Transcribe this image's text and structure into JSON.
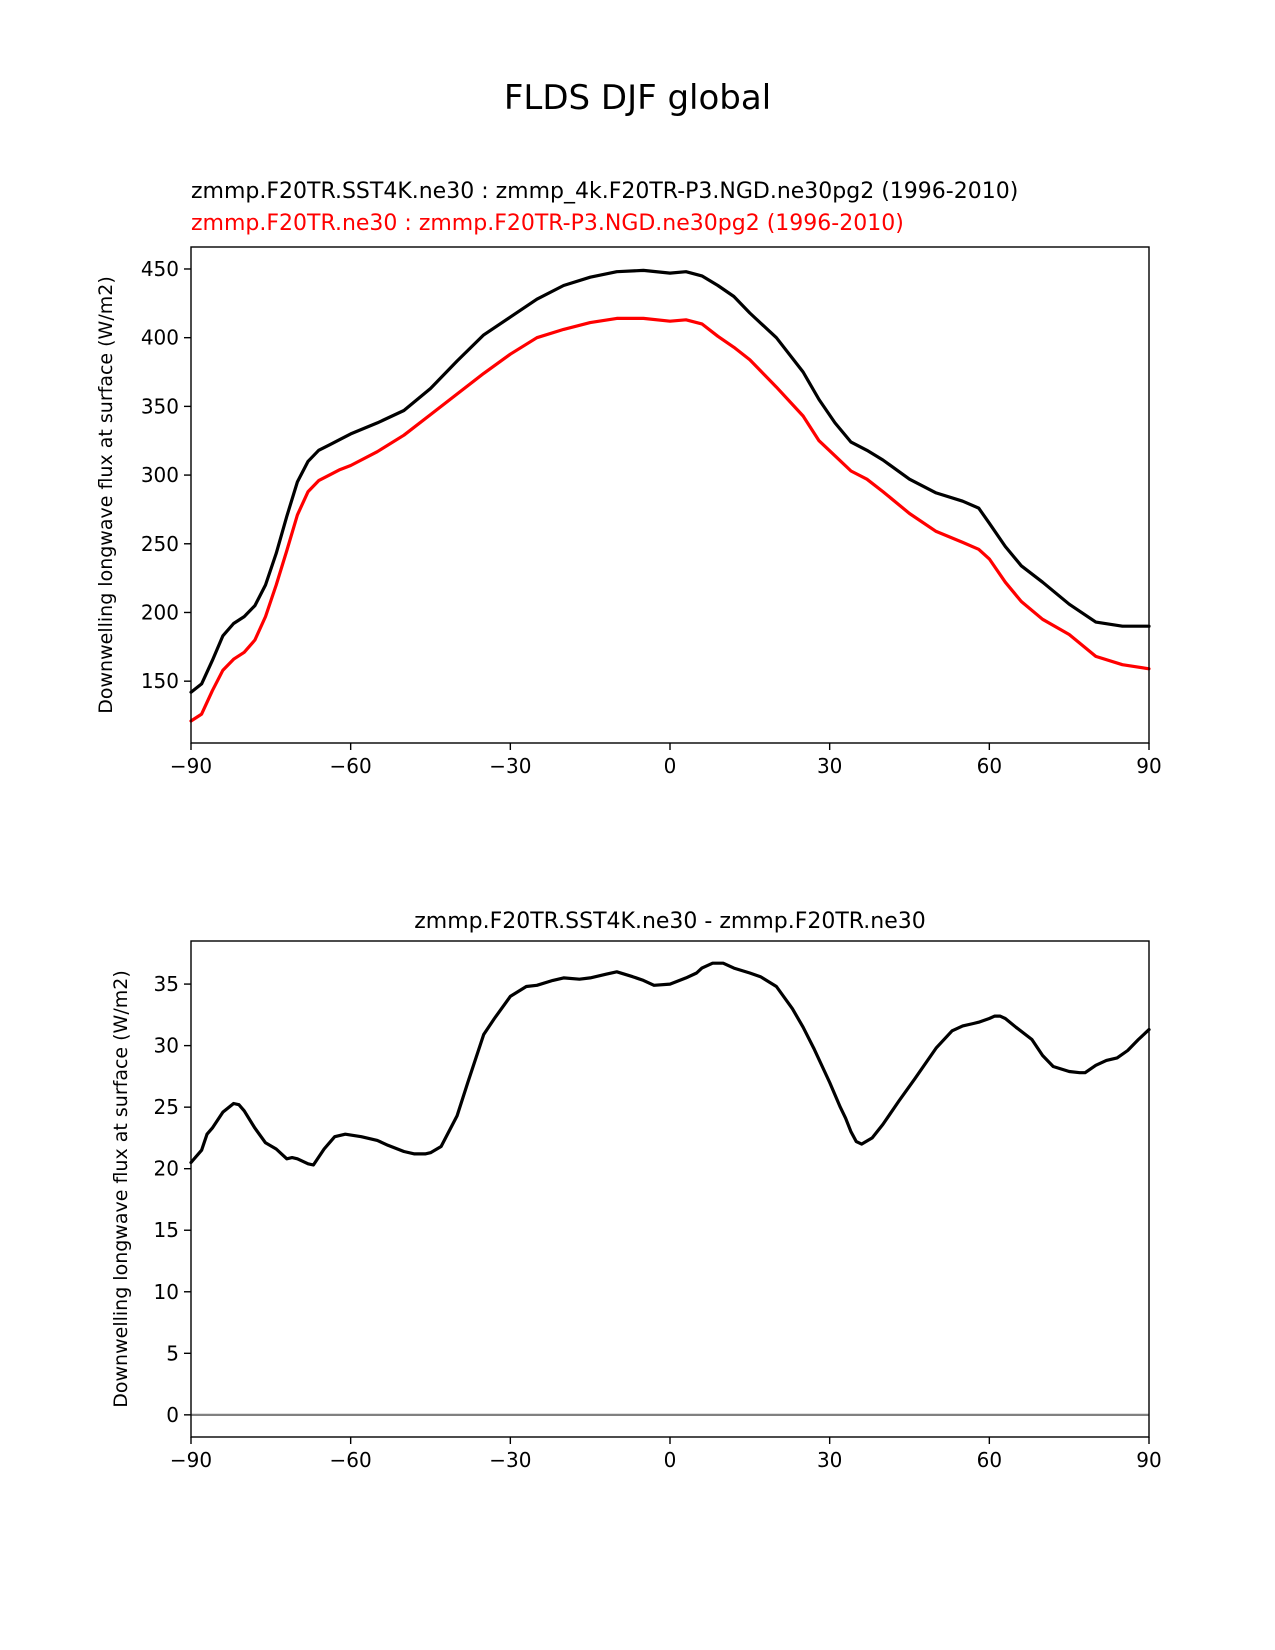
{
  "figure": {
    "suptitle": "FLDS DJF global"
  },
  "chart_data": [
    {
      "type": "line",
      "title_lines": [
        "zmmp.F20TR.SST4K.ne30 : zmmp_4k.F20TR-P3.NGD.ne30pg2 (1996-2010)",
        "zmmp.F20TR.ne30 : zmmp.F20TR-P3.NGD.ne30pg2 (1996-2010)"
      ],
      "title_colors": [
        "#000000",
        "#ff0000"
      ],
      "xlabel": "",
      "ylabel": "Downwelling longwave flux at surface (W/m2)",
      "xlim": [
        -90,
        90
      ],
      "ylim": [
        105,
        466
      ],
      "xticks": [
        -90,
        -60,
        -30,
        0,
        30,
        60,
        90
      ],
      "xtick_labels": [
        "−90",
        "−60",
        "−30",
        "0",
        "30",
        "60",
        "90"
      ],
      "yticks": [
        150,
        200,
        250,
        300,
        350,
        400,
        450
      ],
      "ytick_labels": [
        "150",
        "200",
        "250",
        "300",
        "350",
        "400",
        "450"
      ],
      "series": [
        {
          "name": "zmmp.F20TR.SST4K.ne30 : zmmp_4k.F20TR-P3.NGD.ne30pg2 (1996-2010)",
          "color": "#000000",
          "x": [
            -90,
            -88,
            -86,
            -84,
            -82,
            -80,
            -78,
            -76,
            -74,
            -72,
            -70,
            -68,
            -66,
            -64,
            -62,
            -60,
            -55,
            -50,
            -45,
            -40,
            -35,
            -30,
            -25,
            -20,
            -15,
            -10,
            -5,
            0,
            3,
            6,
            9,
            12,
            15,
            20,
            25,
            28,
            31,
            34,
            37,
            40,
            45,
            50,
            55,
            58,
            60,
            63,
            66,
            70,
            75,
            80,
            85,
            90
          ],
          "y": [
            142,
            148,
            165,
            183,
            192,
            197,
            205,
            220,
            243,
            270,
            295,
            310,
            318,
            322,
            326,
            330,
            338,
            347,
            363,
            383,
            402,
            415,
            428,
            438,
            444,
            448,
            449,
            447,
            448,
            445,
            438,
            430,
            418,
            400,
            375,
            355,
            338,
            324,
            318,
            311,
            297,
            287,
            281,
            276,
            265,
            248,
            234,
            222,
            206,
            193,
            190,
            190
          ]
        },
        {
          "name": "zmmp.F20TR.ne30 : zmmp.F20TR-P3.NGD.ne30pg2 (1996-2010)",
          "color": "#ff0000",
          "x": [
            -90,
            -88,
            -86,
            -84,
            -82,
            -80,
            -78,
            -76,
            -74,
            -72,
            -70,
            -68,
            -66,
            -64,
            -62,
            -60,
            -55,
            -50,
            -45,
            -40,
            -35,
            -30,
            -25,
            -20,
            -15,
            -10,
            -5,
            0,
            3,
            6,
            9,
            12,
            15,
            20,
            25,
            28,
            31,
            34,
            37,
            40,
            45,
            50,
            55,
            58,
            60,
            63,
            66,
            70,
            75,
            80,
            85,
            90
          ],
          "y": [
            121,
            126,
            143,
            158,
            166,
            171,
            180,
            197,
            220,
            245,
            271,
            288,
            296,
            300,
            304,
            307,
            317,
            329,
            344,
            359,
            374,
            388,
            400,
            406,
            411,
            414,
            414,
            412,
            413,
            410,
            401,
            393,
            384,
            364,
            343,
            325,
            314,
            303,
            297,
            288,
            272,
            259,
            251,
            246,
            239,
            222,
            208,
            195,
            184,
            168,
            162,
            159
          ]
        }
      ]
    },
    {
      "type": "line",
      "title_lines": [
        "zmmp.F20TR.SST4K.ne30 - zmmp.F20TR.ne30"
      ],
      "title_colors": [
        "#000000"
      ],
      "xlabel": "",
      "ylabel": "Downwelling longwave flux at surface (W/m2)",
      "xlim": [
        -90,
        90
      ],
      "ylim": [
        -1.8,
        38.5
      ],
      "xticks": [
        -90,
        -60,
        -30,
        0,
        30,
        60,
        90
      ],
      "xtick_labels": [
        "−90",
        "−60",
        "−30",
        "0",
        "30",
        "60",
        "90"
      ],
      "yticks": [
        0,
        5,
        10,
        15,
        20,
        25,
        30,
        35
      ],
      "ytick_labels": [
        "0",
        "5",
        "10",
        "15",
        "20",
        "25",
        "30",
        "35"
      ],
      "reference_line": {
        "y": 0,
        "color": "#808080"
      },
      "series": [
        {
          "name": "zmmp.F20TR.SST4K.ne30 - zmmp.F20TR.ne30",
          "color": "#000000",
          "x": [
            -90,
            -88,
            -87,
            -86,
            -84,
            -82,
            -81,
            -80,
            -78,
            -76,
            -74,
            -72,
            -71,
            -70,
            -68,
            -67,
            -65,
            -63,
            -61,
            -58,
            -55,
            -53,
            -50,
            -48,
            -46,
            -45,
            -43,
            -40,
            -38,
            -35,
            -33,
            -30,
            -27,
            -25,
            -22,
            -20,
            -17,
            -15,
            -12,
            -10,
            -7,
            -5,
            -3,
            0,
            3,
            5,
            6,
            8,
            10,
            12,
            15,
            17,
            20,
            23,
            25,
            27,
            30,
            32,
            33,
            34,
            35,
            36,
            38,
            40,
            43,
            46,
            50,
            53,
            55,
            57,
            58,
            60,
            61,
            62,
            63,
            65,
            68,
            70,
            72,
            75,
            77,
            78,
            80,
            82,
            84,
            86,
            88,
            90
          ],
          "y": [
            20.5,
            21.5,
            22.8,
            23.3,
            24.6,
            25.3,
            25.2,
            24.7,
            23.3,
            22.1,
            21.6,
            20.8,
            20.9,
            20.8,
            20.4,
            20.3,
            21.6,
            22.6,
            22.8,
            22.6,
            22.3,
            21.9,
            21.4,
            21.2,
            21.2,
            21.3,
            21.8,
            24.3,
            27.0,
            30.9,
            32.2,
            34.0,
            34.8,
            34.9,
            35.3,
            35.5,
            35.4,
            35.5,
            35.8,
            36.0,
            35.6,
            35.3,
            34.9,
            35.0,
            35.5,
            35.9,
            36.3,
            36.7,
            36.7,
            36.3,
            35.9,
            35.6,
            34.8,
            33.0,
            31.5,
            29.8,
            27.0,
            25.0,
            24.1,
            23.0,
            22.2,
            22.0,
            22.5,
            23.6,
            25.5,
            27.3,
            29.8,
            31.2,
            31.6,
            31.8,
            31.9,
            32.2,
            32.4,
            32.4,
            32.2,
            31.5,
            30.5,
            29.2,
            28.3,
            27.9,
            27.8,
            27.8,
            28.4,
            28.8,
            29.0,
            29.6,
            30.5,
            31.3
          ]
        }
      ]
    }
  ]
}
